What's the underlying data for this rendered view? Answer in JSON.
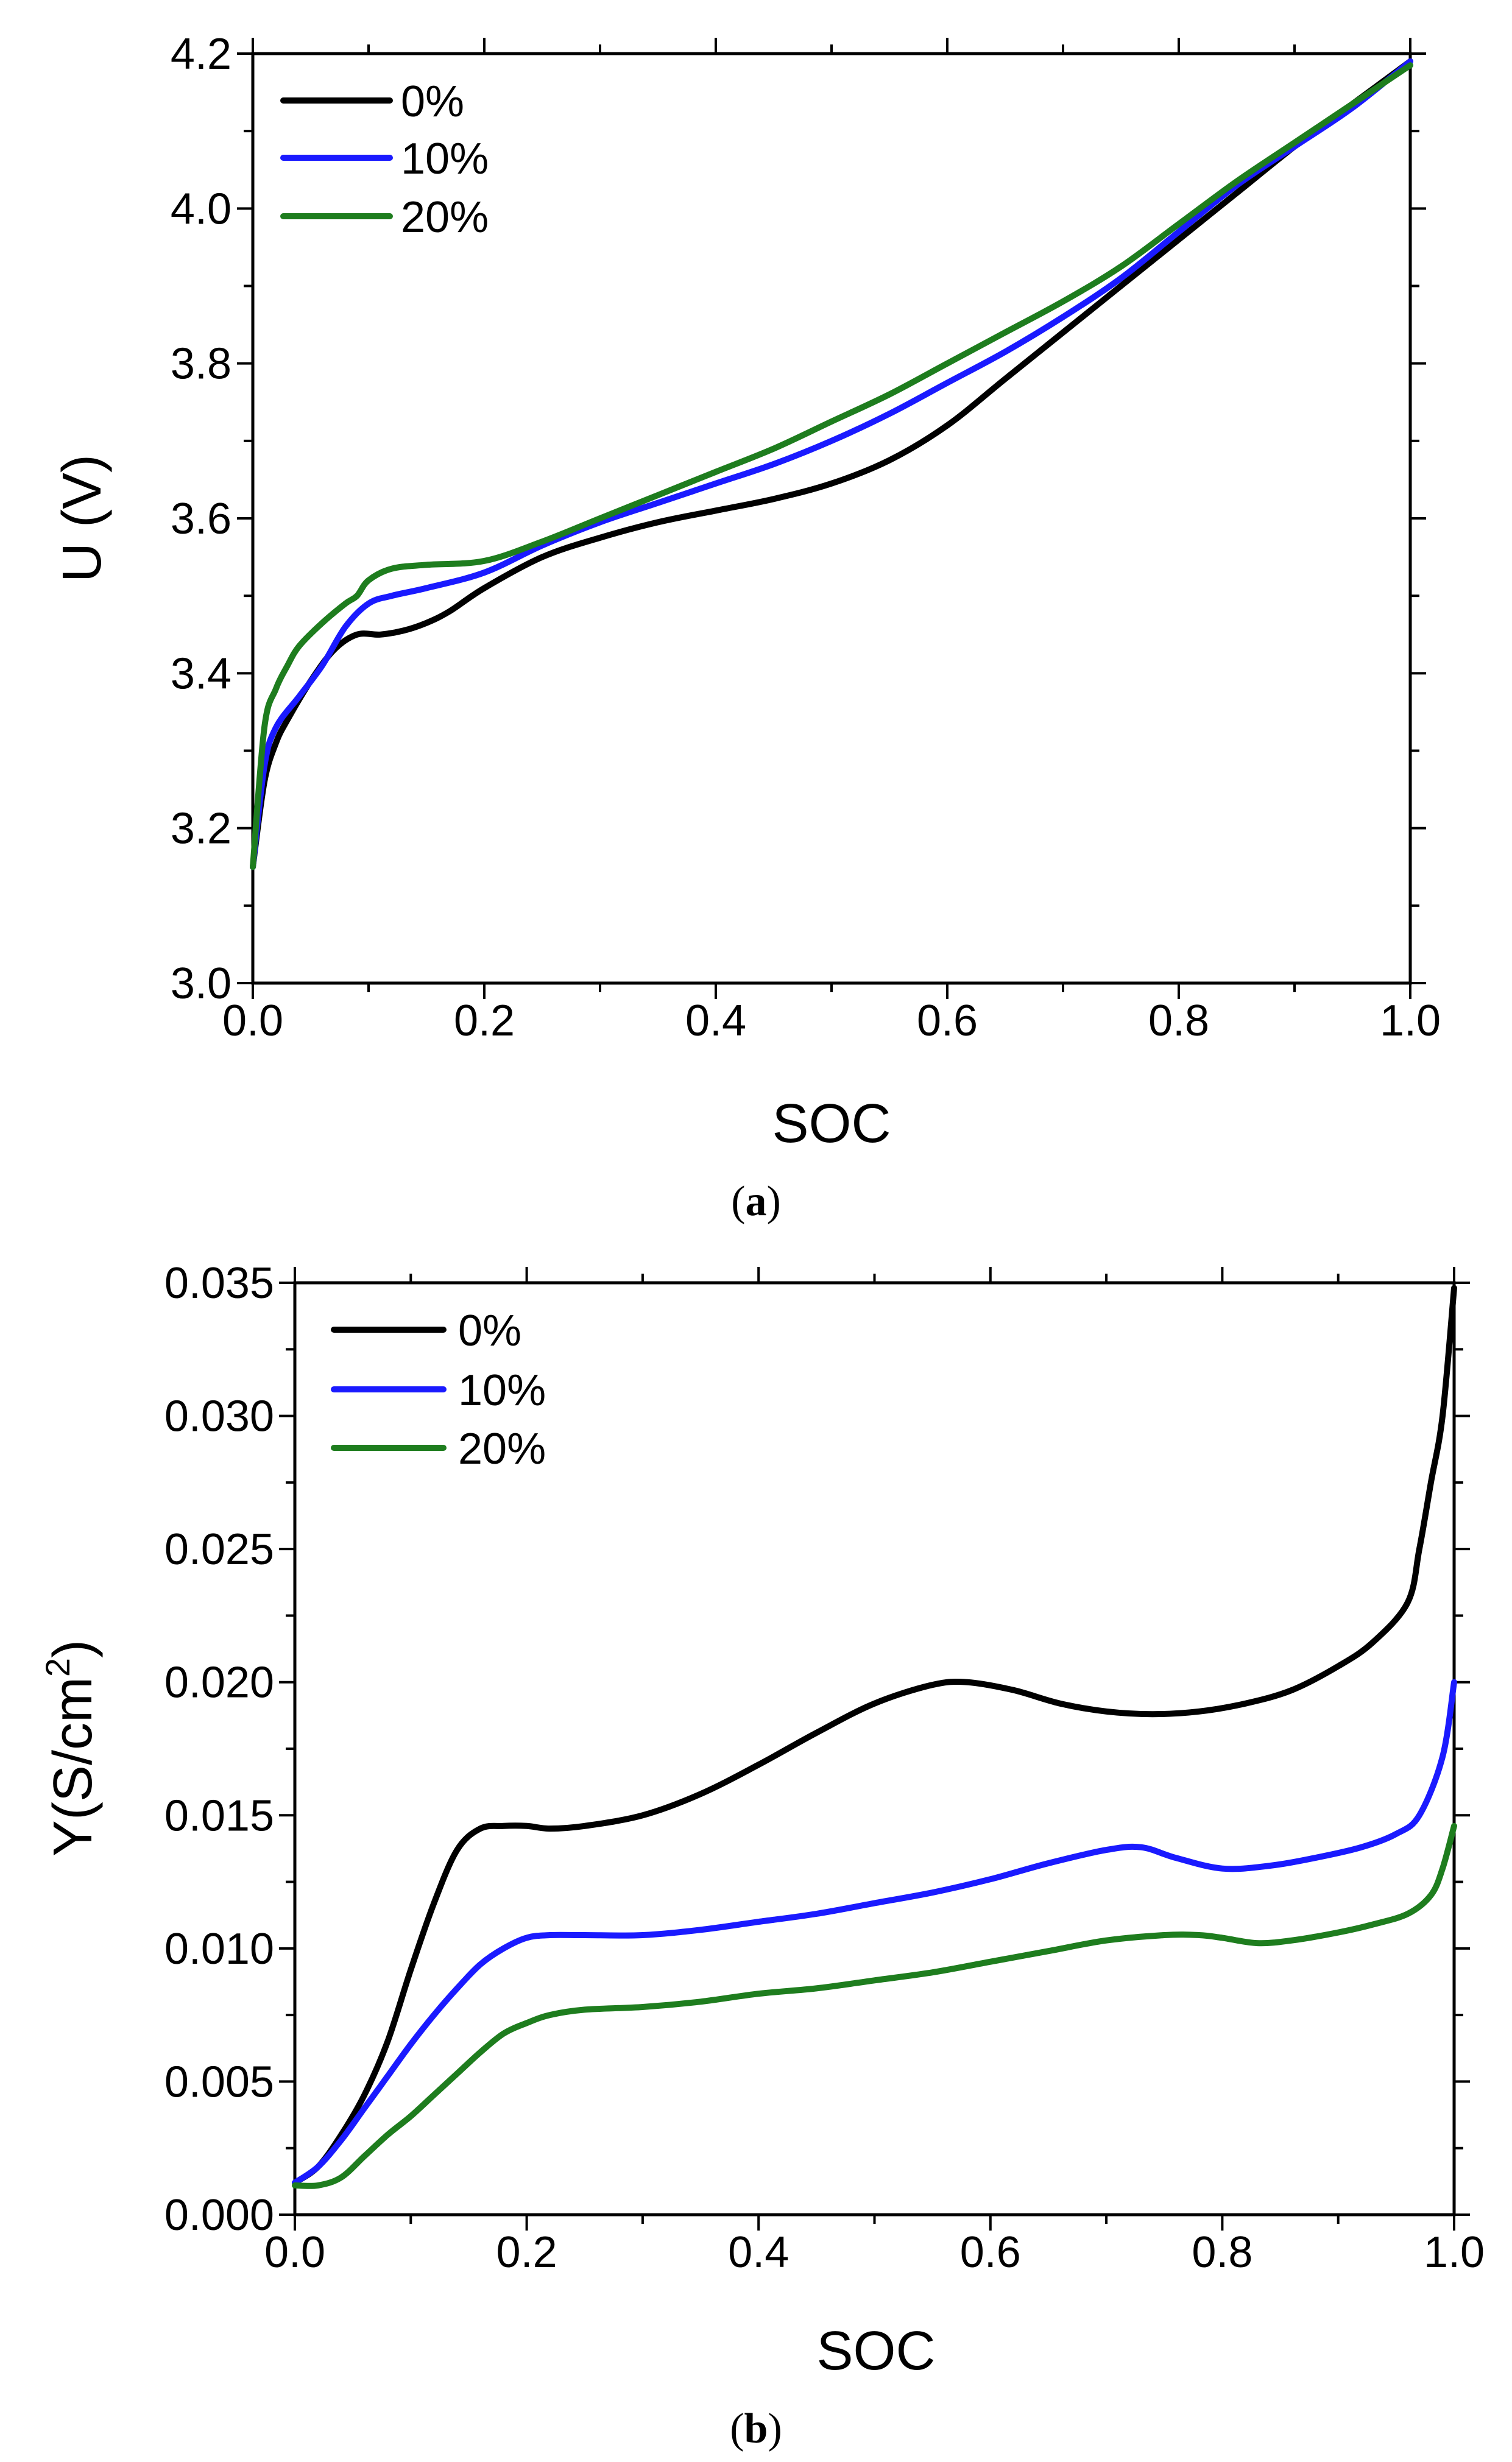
{
  "chart_data": [
    {
      "id": "a",
      "type": "line",
      "caption_letter": "a",
      "xlabel": "SOC",
      "ylabel": "U (V)",
      "xlim": [
        0.0,
        1.0
      ],
      "ylim": [
        3.0,
        4.2
      ],
      "xticks": [
        "0.0",
        "0.2",
        "0.4",
        "0.6",
        "0.8",
        "1.0"
      ],
      "yticks": [
        "3.0",
        "3.2",
        "3.4",
        "3.6",
        "3.8",
        "4.0",
        "4.2"
      ],
      "legend_position": "top-left",
      "series": [
        {
          "name": "0%",
          "color": "#000000",
          "x": [
            0.0,
            0.01,
            0.02,
            0.03,
            0.05,
            0.07,
            0.09,
            0.11,
            0.13,
            0.15,
            0.17,
            0.2,
            0.25,
            0.3,
            0.35,
            0.4,
            0.45,
            0.5,
            0.55,
            0.6,
            0.65,
            0.7,
            0.75,
            0.8,
            0.85,
            0.9,
            0.95,
            1.0
          ],
          "y": [
            3.15,
            3.26,
            3.31,
            3.34,
            3.39,
            3.43,
            3.45,
            3.45,
            3.455,
            3.465,
            3.48,
            3.51,
            3.55,
            3.575,
            3.595,
            3.61,
            3.625,
            3.645,
            3.675,
            3.72,
            3.78,
            3.84,
            3.9,
            3.96,
            4.02,
            4.08,
            4.135,
            4.19
          ]
        },
        {
          "name": "10%",
          "color": "#1a1aff",
          "x": [
            0.0,
            0.01,
            0.02,
            0.04,
            0.06,
            0.08,
            0.1,
            0.12,
            0.15,
            0.2,
            0.25,
            0.3,
            0.35,
            0.4,
            0.45,
            0.5,
            0.55,
            0.6,
            0.65,
            0.7,
            0.75,
            0.8,
            0.85,
            0.9,
            0.95,
            1.0
          ],
          "y": [
            3.15,
            3.28,
            3.33,
            3.37,
            3.41,
            3.46,
            3.49,
            3.5,
            3.51,
            3.53,
            3.565,
            3.595,
            3.62,
            3.645,
            3.67,
            3.7,
            3.735,
            3.775,
            3.815,
            3.86,
            3.91,
            3.97,
            4.03,
            4.08,
            4.13,
            4.19
          ]
        },
        {
          "name": "20%",
          "color": "#1e7d1e",
          "x": [
            0.0,
            0.01,
            0.02,
            0.03,
            0.04,
            0.06,
            0.08,
            0.09,
            0.1,
            0.12,
            0.15,
            0.2,
            0.25,
            0.3,
            0.35,
            0.4,
            0.45,
            0.5,
            0.55,
            0.6,
            0.65,
            0.7,
            0.75,
            0.8,
            0.85,
            0.9,
            0.95,
            1.0
          ],
          "y": [
            3.15,
            3.33,
            3.38,
            3.41,
            3.435,
            3.465,
            3.49,
            3.5,
            3.52,
            3.535,
            3.54,
            3.545,
            3.57,
            3.6,
            3.63,
            3.66,
            3.69,
            3.725,
            3.76,
            3.8,
            3.84,
            3.88,
            3.925,
            3.98,
            4.035,
            4.085,
            4.135,
            4.185
          ]
        }
      ]
    },
    {
      "id": "b",
      "type": "line",
      "caption_letter": "b",
      "xlabel": "SOC",
      "ylabel": "Y(S/cm",
      "ylabel_superscript": "2",
      "ylabel_close": ")",
      "xlim": [
        0.0,
        1.0
      ],
      "ylim": [
        0.0,
        0.035
      ],
      "xticks": [
        "0.0",
        "0.2",
        "0.4",
        "0.6",
        "0.8",
        "1.0"
      ],
      "yticks": [
        "0.000",
        "0.005",
        "0.010",
        "0.015",
        "0.020",
        "0.025",
        "0.030",
        "0.035"
      ],
      "legend_position": "top-left",
      "series": [
        {
          "name": "0%",
          "color": "#000000",
          "x": [
            0.0,
            0.02,
            0.04,
            0.06,
            0.08,
            0.1,
            0.12,
            0.14,
            0.16,
            0.18,
            0.2,
            0.22,
            0.25,
            0.3,
            0.35,
            0.4,
            0.45,
            0.5,
            0.55,
            0.58,
            0.62,
            0.66,
            0.7,
            0.74,
            0.78,
            0.82,
            0.86,
            0.9,
            0.93,
            0.96,
            0.97,
            0.98,
            0.99,
            1.0
          ],
          "y": [
            0.0012,
            0.0018,
            0.003,
            0.0045,
            0.0065,
            0.0092,
            0.0117,
            0.0137,
            0.0145,
            0.0146,
            0.0146,
            0.0145,
            0.0146,
            0.015,
            0.0158,
            0.0169,
            0.0181,
            0.0192,
            0.0199,
            0.02,
            0.0197,
            0.0192,
            0.0189,
            0.0188,
            0.0189,
            0.0192,
            0.0197,
            0.0206,
            0.0215,
            0.023,
            0.025,
            0.0275,
            0.03,
            0.0348
          ]
        },
        {
          "name": "10%",
          "color": "#1a1aff",
          "x": [
            0.0,
            0.02,
            0.04,
            0.06,
            0.08,
            0.1,
            0.12,
            0.14,
            0.16,
            0.18,
            0.2,
            0.22,
            0.25,
            0.3,
            0.35,
            0.4,
            0.45,
            0.5,
            0.55,
            0.6,
            0.65,
            0.7,
            0.73,
            0.76,
            0.8,
            0.84,
            0.88,
            0.92,
            0.95,
            0.97,
            0.99,
            1.0
          ],
          "y": [
            0.0012,
            0.0018,
            0.0028,
            0.004,
            0.0052,
            0.0064,
            0.0075,
            0.0085,
            0.0094,
            0.01,
            0.0104,
            0.0105,
            0.0105,
            0.0105,
            0.0107,
            0.011,
            0.0113,
            0.0117,
            0.0121,
            0.0126,
            0.0132,
            0.0137,
            0.0138,
            0.0134,
            0.013,
            0.0131,
            0.0134,
            0.0138,
            0.0143,
            0.015,
            0.0172,
            0.02
          ]
        },
        {
          "name": "20%",
          "color": "#1e7d1e",
          "x": [
            0.0,
            0.02,
            0.04,
            0.06,
            0.08,
            0.1,
            0.12,
            0.14,
            0.16,
            0.18,
            0.2,
            0.22,
            0.25,
            0.3,
            0.35,
            0.4,
            0.45,
            0.5,
            0.55,
            0.6,
            0.65,
            0.7,
            0.75,
            0.78,
            0.8,
            0.83,
            0.86,
            0.9,
            0.93,
            0.96,
            0.98,
            0.99,
            1.0
          ],
          "y": [
            0.0011,
            0.0011,
            0.0014,
            0.0022,
            0.003,
            0.0037,
            0.0045,
            0.0053,
            0.0061,
            0.0068,
            0.0072,
            0.0075,
            0.0077,
            0.0078,
            0.008,
            0.0083,
            0.0085,
            0.0088,
            0.0091,
            0.0095,
            0.0099,
            0.0103,
            0.0105,
            0.0105,
            0.0104,
            0.0102,
            0.0103,
            0.0106,
            0.0109,
            0.0113,
            0.012,
            0.013,
            0.0146
          ]
        }
      ]
    }
  ]
}
